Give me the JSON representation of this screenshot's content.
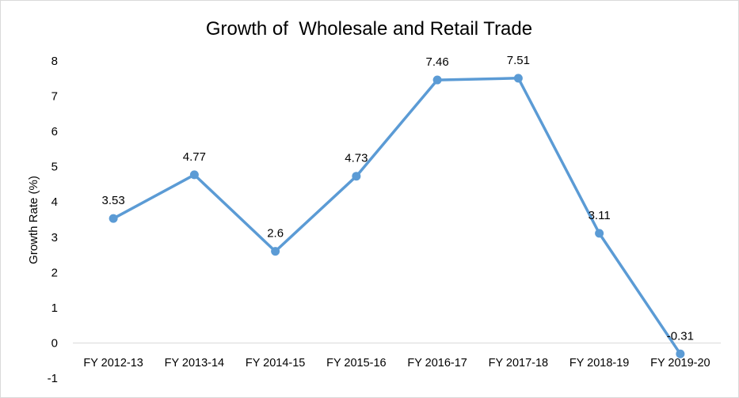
{
  "chart_data": {
    "type": "line",
    "title": "Growth of  Wholesale and Retail Trade",
    "xlabel": "",
    "ylabel": "Growth Rate (%)",
    "categories": [
      "FY 2012-13",
      "FY 2013-14",
      "FY 2014-15",
      "FY 2015-16",
      "FY 2016-17",
      "FY 2017-18",
      "FY 2018-19",
      "FY 2019-20"
    ],
    "series": [
      {
        "values": [
          3.53,
          4.77,
          2.6,
          4.73,
          7.46,
          7.51,
          3.11,
          -0.31
        ],
        "data_labels": [
          "3.53",
          "4.77",
          "2.6",
          "4.73",
          "7.46",
          "7.51",
          "3.11",
          "-0.31"
        ],
        "color": "#5b9bd5"
      }
    ],
    "ylim": [
      -1,
      8
    ],
    "yticks": [
      -1,
      0,
      1,
      2,
      3,
      4,
      5,
      6,
      7,
      8
    ],
    "grid": false,
    "legend": "none"
  }
}
